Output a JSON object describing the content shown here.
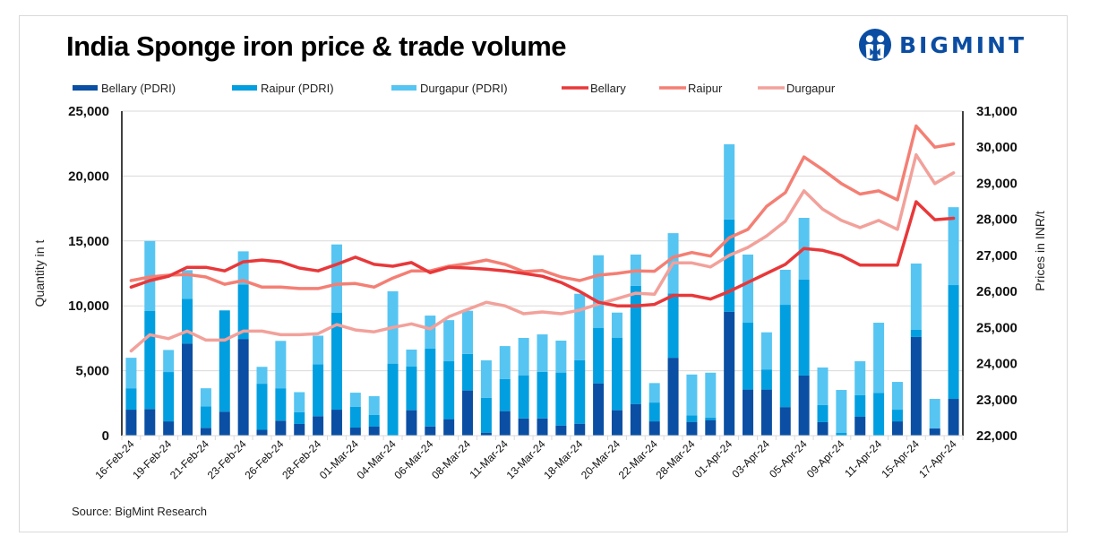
{
  "title": "India Sponge iron price & trade volume",
  "logo": {
    "text": "BIGMINT",
    "color": "#0B4DA2"
  },
  "source": "Source: BigMint Research",
  "chart_data": {
    "type": "bar+line",
    "title": "India Sponge iron price & trade volume",
    "ylabel_left": "Quantity in t",
    "ylabel_right": "Prices in INR/t",
    "ylim_left": [
      0,
      25000
    ],
    "ylim_right": [
      22000,
      31000
    ],
    "yticks_left": [
      "0",
      "5,000",
      "10,000",
      "15,000",
      "20,000",
      "25,000"
    ],
    "yticks_right": [
      "22,000",
      "23,000",
      "24,000",
      "25,000",
      "26,000",
      "27,000",
      "28,000",
      "29,000",
      "30,000",
      "31,000"
    ],
    "grid": true,
    "legend_position": "top",
    "x_tick_labels": [
      "16-Feb-24",
      "19-Feb-24",
      "21-Feb-24",
      "23-Feb-24",
      "26-Feb-24",
      "28-Feb-24",
      "01-Mar-24",
      "04-Mar-24",
      "06-Mar-24",
      "08-Mar-24",
      "11-Mar-24",
      "13-Mar-24",
      "18-Mar-24",
      "20-Mar-24",
      "22-Mar-24",
      "28-Mar-24",
      "01-Apr-24",
      "03-Apr-24",
      "05-Apr-24",
      "09-Apr-24",
      "11-Apr-24",
      "15-Apr-24",
      "17-Apr-24"
    ],
    "x_tick_every": 2,
    "n_points": 45,
    "bar_series": [
      {
        "name": "Bellary (PDRI)",
        "color": "#0A4FA3",
        "axis": "left",
        "values": [
          2000,
          2050,
          1100,
          7100,
          600,
          1850,
          7450,
          450,
          1150,
          900,
          1500,
          2000,
          620,
          690,
          0,
          1960,
          710,
          1270,
          3480,
          230,
          1890,
          1330,
          1330,
          780,
          920,
          4030,
          1960,
          2440,
          1100,
          6000,
          1060,
          1200,
          9550,
          3550,
          3550,
          2200,
          4630,
          1040,
          0,
          1450,
          0,
          1100,
          7600,
          550,
          2830
        ]
      },
      {
        "name": "Raipur (PDRI)",
        "color": "#029FE0",
        "axis": "left",
        "values": [
          1650,
          7550,
          3800,
          3450,
          1650,
          7800,
          4200,
          3550,
          2500,
          900,
          4000,
          7460,
          1610,
          900,
          5550,
          3380,
          5990,
          4460,
          2820,
          2690,
          2480,
          3320,
          3590,
          4080,
          4900,
          4280,
          5590,
          9110,
          1450,
          4950,
          500,
          200,
          7100,
          5150,
          1550,
          7880,
          7390,
          1310,
          230,
          1660,
          3300,
          900,
          550,
          0,
          8770
        ]
      },
      {
        "name": "Durgapur (PDRI)",
        "color": "#56C5F2",
        "axis": "left",
        "values": [
          2350,
          5400,
          1700,
          2200,
          1400,
          0,
          2550,
          1300,
          3650,
          1550,
          2200,
          5270,
          1080,
          1450,
          5570,
          1290,
          2550,
          3170,
          3320,
          2880,
          2530,
          2880,
          2880,
          2460,
          5110,
          5590,
          1930,
          2400,
          1500,
          4650,
          3150,
          3450,
          5800,
          5250,
          2860,
          2700,
          4760,
          2900,
          3290,
          2620,
          5400,
          2140,
          5110,
          2280,
          6000
        ]
      }
    ],
    "line_series": [
      {
        "name": "Bellary",
        "color": "#E8383A",
        "axis": "right",
        "values": [
          26120,
          26300,
          26420,
          26670,
          26670,
          26570,
          26820,
          26870,
          26820,
          26650,
          26570,
          26750,
          26950,
          26750,
          26700,
          26800,
          26520,
          26670,
          26650,
          26620,
          26570,
          26500,
          26420,
          26250,
          26000,
          25700,
          25600,
          25600,
          25640,
          25890,
          25890,
          25790,
          26000,
          26250,
          26500,
          26750,
          27190,
          27140,
          27000,
          26730,
          26730,
          26730,
          28490,
          27990,
          28030
        ]
      },
      {
        "name": "Raipur",
        "color": "#F47F74",
        "axis": "right",
        "values": [
          26300,
          26400,
          26450,
          26470,
          26400,
          26200,
          26300,
          26120,
          26120,
          26080,
          26080,
          26200,
          26220,
          26120,
          26370,
          26570,
          26570,
          26700,
          26770,
          26870,
          26750,
          26550,
          26580,
          26400,
          26300,
          26450,
          26500,
          26570,
          26560,
          26950,
          27080,
          26980,
          27490,
          27720,
          28360,
          28740,
          29730,
          29380,
          28990,
          28700,
          28790,
          28540,
          30590,
          30000,
          30090
        ]
      },
      {
        "name": "Durgapur",
        "color": "#F2A19B",
        "axis": "right",
        "values": [
          24350,
          24800,
          24690,
          24900,
          24650,
          24650,
          24900,
          24900,
          24800,
          24800,
          24830,
          25080,
          24930,
          24880,
          25000,
          25100,
          24960,
          25300,
          25500,
          25700,
          25600,
          25380,
          25430,
          25380,
          25480,
          25650,
          25800,
          25950,
          25920,
          26790,
          26790,
          26680,
          27000,
          27220,
          27540,
          27950,
          28790,
          28280,
          27970,
          27770,
          27970,
          27720,
          29790,
          28990,
          29290
        ]
      }
    ]
  }
}
